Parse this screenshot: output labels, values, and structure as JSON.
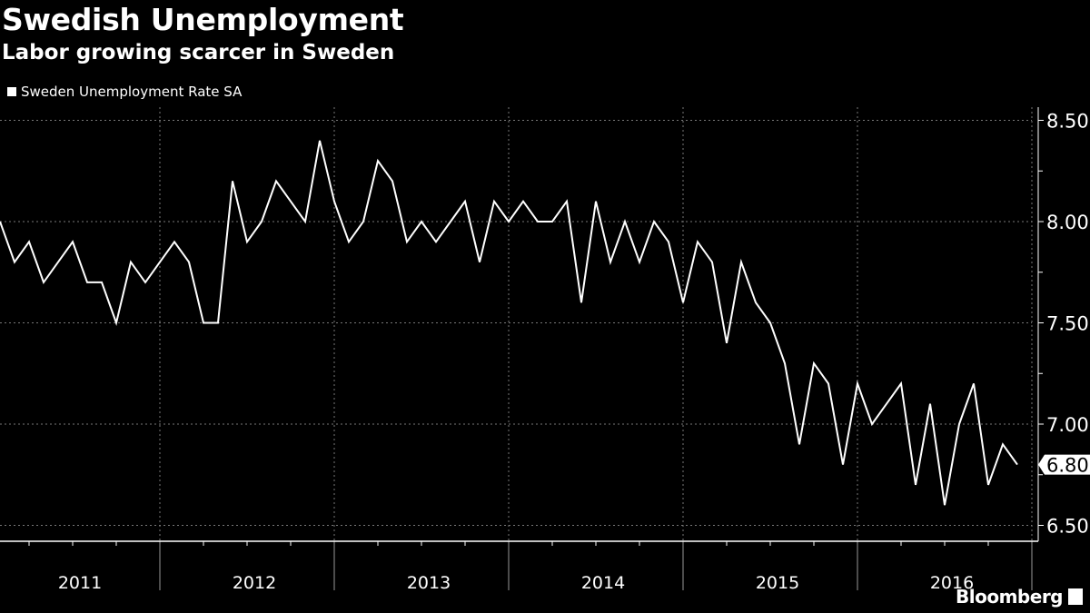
{
  "chart_data": {
    "type": "line",
    "title": "Swedish Unemployment",
    "subtitle": "Labor growing scarcer in Sweden",
    "legend": [
      "Sweden Unemployment Rate SA"
    ],
    "legend_placement": "top-left",
    "series": [
      {
        "name": "Sweden Unemployment Rate SA",
        "start": "2011-02",
        "frequency": "monthly",
        "values": [
          8.0,
          7.8,
          7.9,
          7.7,
          7.8,
          7.9,
          7.7,
          7.7,
          7.5,
          7.8,
          7.7,
          7.8,
          7.9,
          7.8,
          7.5,
          7.5,
          8.2,
          7.9,
          8.0,
          8.2,
          8.1,
          8.0,
          8.4,
          8.1,
          7.9,
          8.0,
          8.3,
          8.2,
          7.9,
          8.0,
          7.9,
          8.0,
          8.1,
          7.8,
          8.1,
          8.0,
          8.1,
          8.0,
          8.0,
          8.1,
          7.6,
          8.1,
          7.8,
          8.0,
          7.8,
          8.0,
          7.9,
          7.6,
          7.9,
          7.8,
          7.4,
          7.8,
          7.6,
          7.5,
          7.3,
          6.9,
          7.3,
          7.2,
          6.8,
          7.2,
          7.0,
          7.1,
          7.2,
          6.7,
          7.1,
          6.6,
          7.0,
          7.2,
          6.7,
          6.9,
          6.8
        ]
      }
    ],
    "x_tick_labels": [
      "2011",
      "2012",
      "2013",
      "2014",
      "2015",
      "2016"
    ],
    "y_tick_labels": [
      "8.50",
      "8.00",
      "7.50",
      "7.00",
      "6.50"
    ],
    "y_ticks": [
      8.5,
      8.0,
      7.5,
      7.0,
      6.5
    ],
    "ylim": [
      6.45,
      8.55
    ],
    "y_axis_side": "right",
    "last_value_label": "6.80",
    "last_value": 6.8,
    "grid": true
  },
  "branding": "Bloomberg",
  "colors": {
    "background": "#000000",
    "line": "#ffffff",
    "grid": "#777777"
  }
}
